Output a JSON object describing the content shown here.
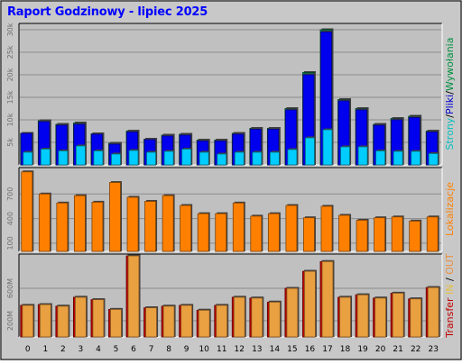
{
  "title": "Raport Godzinowy -  lipiec 2025",
  "colors": {
    "background": "#c0c0c0",
    "frame": "#d0d0d0",
    "hits": "#0000ee",
    "files": "#00ccff",
    "pages": "#00ccff",
    "sites": "#ff8000",
    "kb_in": "#e8a040",
    "kb_out": "#c00000",
    "title": "#0000ff"
  },
  "right_labels": {
    "top": [
      {
        "text": "Strony",
        "color": "#00c0c0"
      },
      {
        "text": "/",
        "color": "#000000"
      },
      {
        "text": "Pliki",
        "color": "#0000cc"
      },
      {
        "text": "/",
        "color": "#000000"
      },
      {
        "text": "Wywołania",
        "color": "#009040"
      }
    ],
    "middle": [
      {
        "text": "Lokalizacje",
        "color": "#ff8000"
      }
    ],
    "bottom": [
      {
        "text": "Transfer",
        "color": "#c00000"
      },
      {
        "text": " ",
        "color": "#000000"
      },
      {
        "text": "IN",
        "color": "#e8c040"
      },
      {
        "text": " / ",
        "color": "#000000"
      },
      {
        "text": "OUT",
        "color": "#e89040"
      }
    ]
  },
  "chart_data": [
    {
      "type": "bar",
      "categories": [
        "0",
        "1",
        "2",
        "3",
        "4",
        "5",
        "6",
        "7",
        "8",
        "9",
        "10",
        "11",
        "12",
        "13",
        "14",
        "15",
        "16",
        "17",
        "18",
        "19",
        "20",
        "21",
        "22",
        "23"
      ],
      "ylim": [
        0,
        31000
      ],
      "yticks": [
        "5k",
        "10k",
        "15k",
        "20k",
        "25k",
        "30k"
      ],
      "ytick_values": [
        5000,
        10000,
        15000,
        20000,
        25000,
        30000
      ],
      "series": [
        {
          "name": "Wywołania",
          "values": [
            7000,
            9800,
            9000,
            9300,
            6900,
            4800,
            7500,
            5700,
            6600,
            6800,
            5500,
            5500,
            7000,
            8100,
            8100,
            12500,
            20500,
            30000,
            14500,
            12500,
            9000,
            10300,
            10800,
            7500
          ]
        },
        {
          "name": "Pliki",
          "values": [
            7000,
            9600,
            8800,
            9000,
            6800,
            4600,
            7300,
            5600,
            6400,
            6600,
            5300,
            5300,
            6800,
            7900,
            7900,
            12200,
            20000,
            29500,
            14200,
            12200,
            8800,
            10000,
            10500,
            7300
          ]
        },
        {
          "name": "Strony",
          "values": [
            2800,
            3500,
            3100,
            4200,
            3100,
            2400,
            3200,
            2800,
            3000,
            3500,
            2800,
            2400,
            2800,
            2800,
            2800,
            3400,
            6000,
            7800,
            4000,
            4000,
            3100,
            3000,
            3000,
            2500
          ]
        }
      ]
    },
    {
      "type": "bar",
      "categories": [
        "0",
        "1",
        "2",
        "3",
        "4",
        "5",
        "6",
        "7",
        "8",
        "9",
        "10",
        "11",
        "12",
        "13",
        "14",
        "15",
        "16",
        "17",
        "18",
        "19",
        "20",
        "21",
        "22",
        "23"
      ],
      "ylim": [
        0,
        1000
      ],
      "yticks": [
        "100",
        "400",
        "700"
      ],
      "ytick_values": [
        100,
        400,
        700
      ],
      "series": [
        {
          "name": "Lokalizacje",
          "values": [
            970,
            700,
            590,
            680,
            600,
            840,
            660,
            610,
            680,
            560,
            460,
            460,
            590,
            430,
            460,
            560,
            410,
            550,
            440,
            380,
            410,
            420,
            370,
            420
          ]
        }
      ]
    },
    {
      "type": "bar",
      "categories": [
        "0",
        "1",
        "2",
        "3",
        "4",
        "5",
        "6",
        "7",
        "8",
        "9",
        "10",
        "11",
        "12",
        "13",
        "14",
        "15",
        "16",
        "17",
        "18",
        "19",
        "20",
        "21",
        "22",
        "23"
      ],
      "ylim": [
        0,
        1000
      ],
      "yticks": [
        "200M",
        "600M"
      ],
      "ytick_values": [
        200,
        600
      ],
      "series": [
        {
          "name": "IN",
          "values": [
            390,
            400,
            380,
            490,
            460,
            340,
            1000,
            360,
            380,
            390,
            330,
            390,
            490,
            480,
            430,
            600,
            810,
            930,
            490,
            520,
            480,
            540,
            470,
            610
          ]
        },
        {
          "name": "OUT",
          "values": [
            390,
            400,
            380,
            490,
            460,
            340,
            1000,
            360,
            380,
            390,
            330,
            390,
            490,
            480,
            430,
            600,
            810,
            930,
            490,
            520,
            480,
            540,
            470,
            610
          ]
        }
      ]
    }
  ],
  "x_labels": [
    "0",
    "1",
    "2",
    "3",
    "4",
    "5",
    "6",
    "7",
    "8",
    "9",
    "10",
    "11",
    "12",
    "13",
    "14",
    "15",
    "16",
    "17",
    "18",
    "19",
    "20",
    "21",
    "22",
    "23"
  ]
}
